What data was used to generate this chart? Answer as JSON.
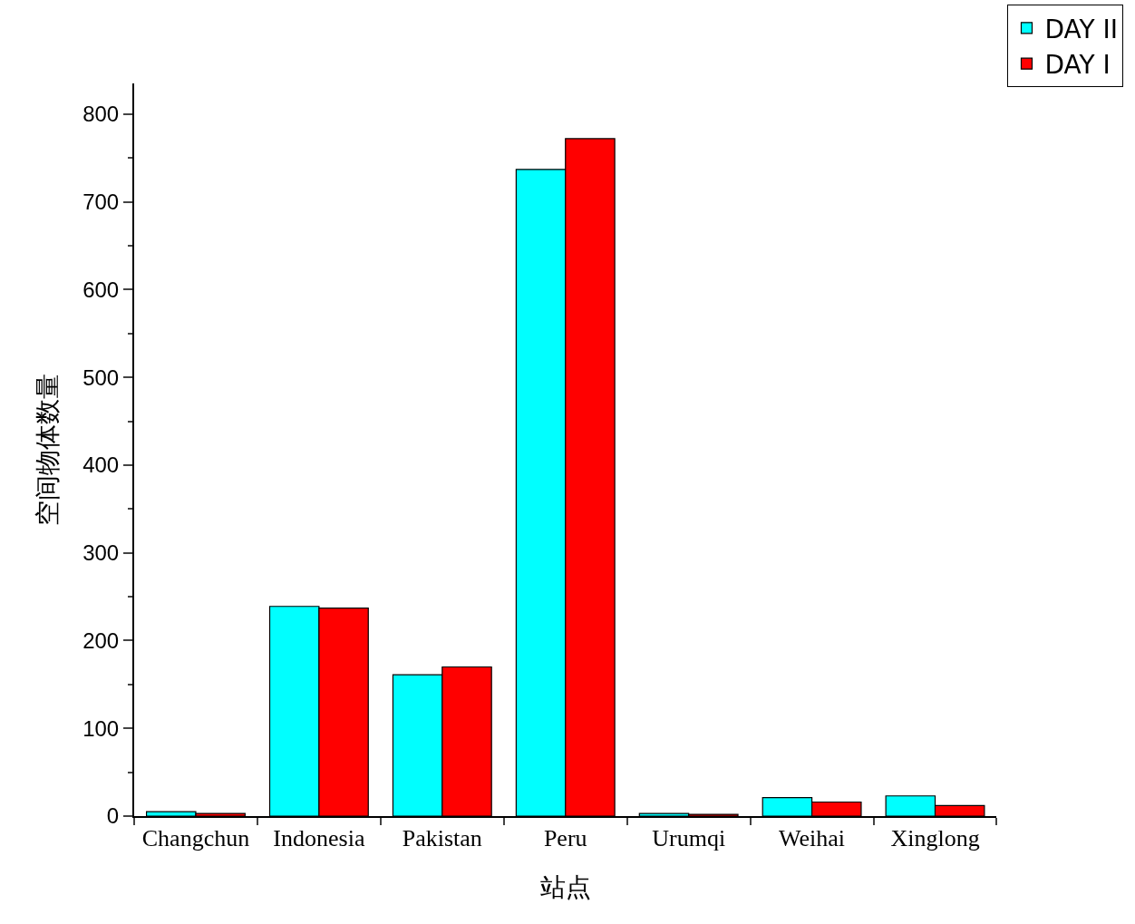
{
  "chart_data": {
    "type": "bar",
    "xlabel": "站点",
    "ylabel": "空间物体数量",
    "categories": [
      "Changchun",
      "Indonesia",
      "Pakistan",
      "Peru",
      "Urumqi",
      "Weihai",
      "Xinglong"
    ],
    "series": [
      {
        "name": "DAY II",
        "color": "#00ffff",
        "values": [
          5,
          239,
          161,
          737,
          3,
          21,
          23
        ]
      },
      {
        "name": "DAY I",
        "color": "#ff0000",
        "values": [
          3,
          237,
          170,
          772,
          2,
          16,
          12
        ]
      }
    ],
    "ylim": [
      0,
      835
    ],
    "yticks": [
      0,
      {
        "value": 50,
        "label": null
      },
      100,
      {
        "value": 150,
        "label": null
      },
      200,
      {
        "value": 250,
        "label": null
      },
      300,
      {
        "value": 350,
        "label": null
      },
      400,
      {
        "value": 450,
        "label": null
      },
      500,
      {
        "value": 550,
        "label": null
      },
      600,
      {
        "value": 650,
        "label": null
      },
      700,
      {
        "value": 750,
        "label": null
      },
      800
    ],
    "legend": "top right"
  }
}
